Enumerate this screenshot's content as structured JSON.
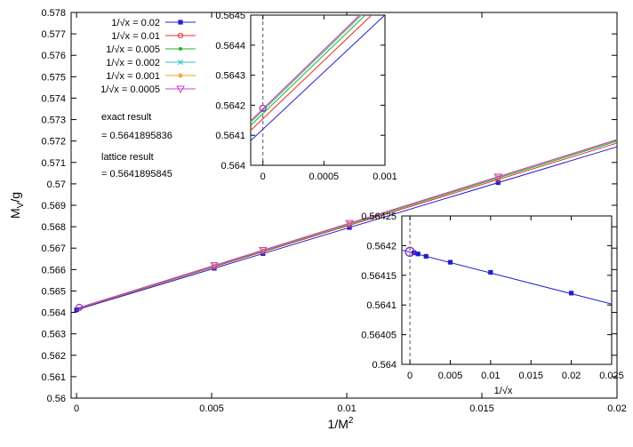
{
  "chart_data": [
    {
      "id": "main",
      "type": "line",
      "xlabel": "1/M",
      "xlabel_sup": "2",
      "ylabel": "M",
      "ylabel_sub": "V",
      "ylabel_tail": "/g",
      "xlim": [
        0,
        0.02
      ],
      "ylim": [
        0.56,
        0.578
      ],
      "xticks": [
        0,
        0.005,
        0.01,
        0.015,
        0.02
      ],
      "xtick_labels": [
        "0",
        "0.005",
        "0.01",
        "0.015",
        "0.02"
      ],
      "yticks": [
        0.56,
        0.561,
        0.562,
        0.563,
        0.564,
        0.565,
        0.566,
        0.567,
        0.568,
        0.569,
        0.57,
        0.571,
        0.572,
        0.573,
        0.574,
        0.575,
        0.576,
        0.577,
        0.578
      ],
      "ytick_labels": [
        "0.56",
        "0.561",
        "0.562",
        "0.563",
        "0.564",
        "0.565",
        "0.566",
        "0.567",
        "0.568",
        "0.569",
        "0.57",
        "0.571",
        "0.572",
        "0.573",
        "0.574",
        "0.575",
        "0.576",
        "0.577",
        "0.578"
      ],
      "grid": false,
      "legend_placement": "top-left",
      "x": [
        0,
        0.0051,
        0.0069,
        0.0101,
        0.0156,
        0.02
      ],
      "series": [
        {
          "name": "1/√x = 0.02",
          "color": "#2020d0",
          "marker": "square",
          "y0": 0.56412,
          "slope": 0.3805
        },
        {
          "name": "1/√x = 0.01",
          "color": "#e03030",
          "marker": "circle",
          "y0": 0.564155,
          "slope": 0.3875
        },
        {
          "name": "1/√x = 0.005",
          "color": "#20b020",
          "marker": "dot",
          "y0": 0.564172,
          "slope": 0.391
        },
        {
          "name": "1/√x = 0.002",
          "color": "#30c0c0",
          "marker": "x",
          "y0": 0.564182,
          "slope": 0.393
        },
        {
          "name": "1/√x = 0.001",
          "color": "#f0a020",
          "marker": "star",
          "y0": 0.564186,
          "slope": 0.3935
        },
        {
          "name": "1/√x = 0.0005",
          "color": "#d040d0",
          "marker": "triangle-down",
          "y0": 0.564188,
          "slope": 0.394
        }
      ],
      "exact_point": {
        "x": 0,
        "y": 0.5641895836,
        "color": "#9030c0"
      },
      "annotations": [
        {
          "id": "exact-label",
          "text": "exact result"
        },
        {
          "id": "exact-value",
          "text": "= 0.5641895836"
        },
        {
          "id": "lattice-label",
          "text": "lattice result"
        },
        {
          "id": "lattice-value",
          "text": "= 0.5641895845"
        }
      ]
    },
    {
      "id": "inset-top",
      "type": "line",
      "xlim": [
        -0.0001,
        0.001
      ],
      "ylim": [
        0.564,
        0.5645
      ],
      "xticks": [
        0,
        0.0005,
        0.001
      ],
      "xtick_labels": [
        "0",
        "0.0005",
        "0.001"
      ],
      "yticks": [
        0.564,
        0.5641,
        0.5642,
        0.5643,
        0.5644,
        0.5645
      ],
      "ytick_labels": [
        "0.564",
        "0.5641",
        "0.5642",
        "0.5643",
        "0.5644",
        "0.5645"
      ],
      "dashed_line_x": 0,
      "exact_point": {
        "x": 0,
        "y": 0.5641895836
      }
    },
    {
      "id": "inset-bottom",
      "type": "line",
      "xlabel": "1/√x",
      "xlim": [
        -0.001,
        0.025
      ],
      "ylim": [
        0.564,
        0.56425
      ],
      "xticks": [
        0,
        0.005,
        0.01,
        0.015,
        0.02,
        0.025
      ],
      "xtick_labels": [
        "0",
        "0.005",
        "0.01",
        "0.015",
        "0.02",
        "0.025"
      ],
      "yticks": [
        0.564,
        0.56405,
        0.5641,
        0.56415,
        0.5642,
        0.56425
      ],
      "ytick_labels": [
        "0.564",
        "0.56405",
        "0.5641",
        "0.56415",
        "0.5642",
        "0.56425"
      ],
      "dashed_line_x": 0,
      "series": [
        {
          "color": "#2020d0",
          "x": [
            0.0005,
            0.001,
            0.002,
            0.005,
            0.01,
            0.02
          ],
          "y": [
            0.564188,
            0.564186,
            0.564182,
            0.564172,
            0.564155,
            0.56412
          ],
          "fit_x": [
            -0.001,
            0.025
          ],
          "fit_y": [
            0.5641925,
            0.5641015
          ]
        }
      ],
      "exact_point": {
        "x": 0,
        "y": 0.5641895836,
        "color": "#9030c0"
      }
    }
  ]
}
